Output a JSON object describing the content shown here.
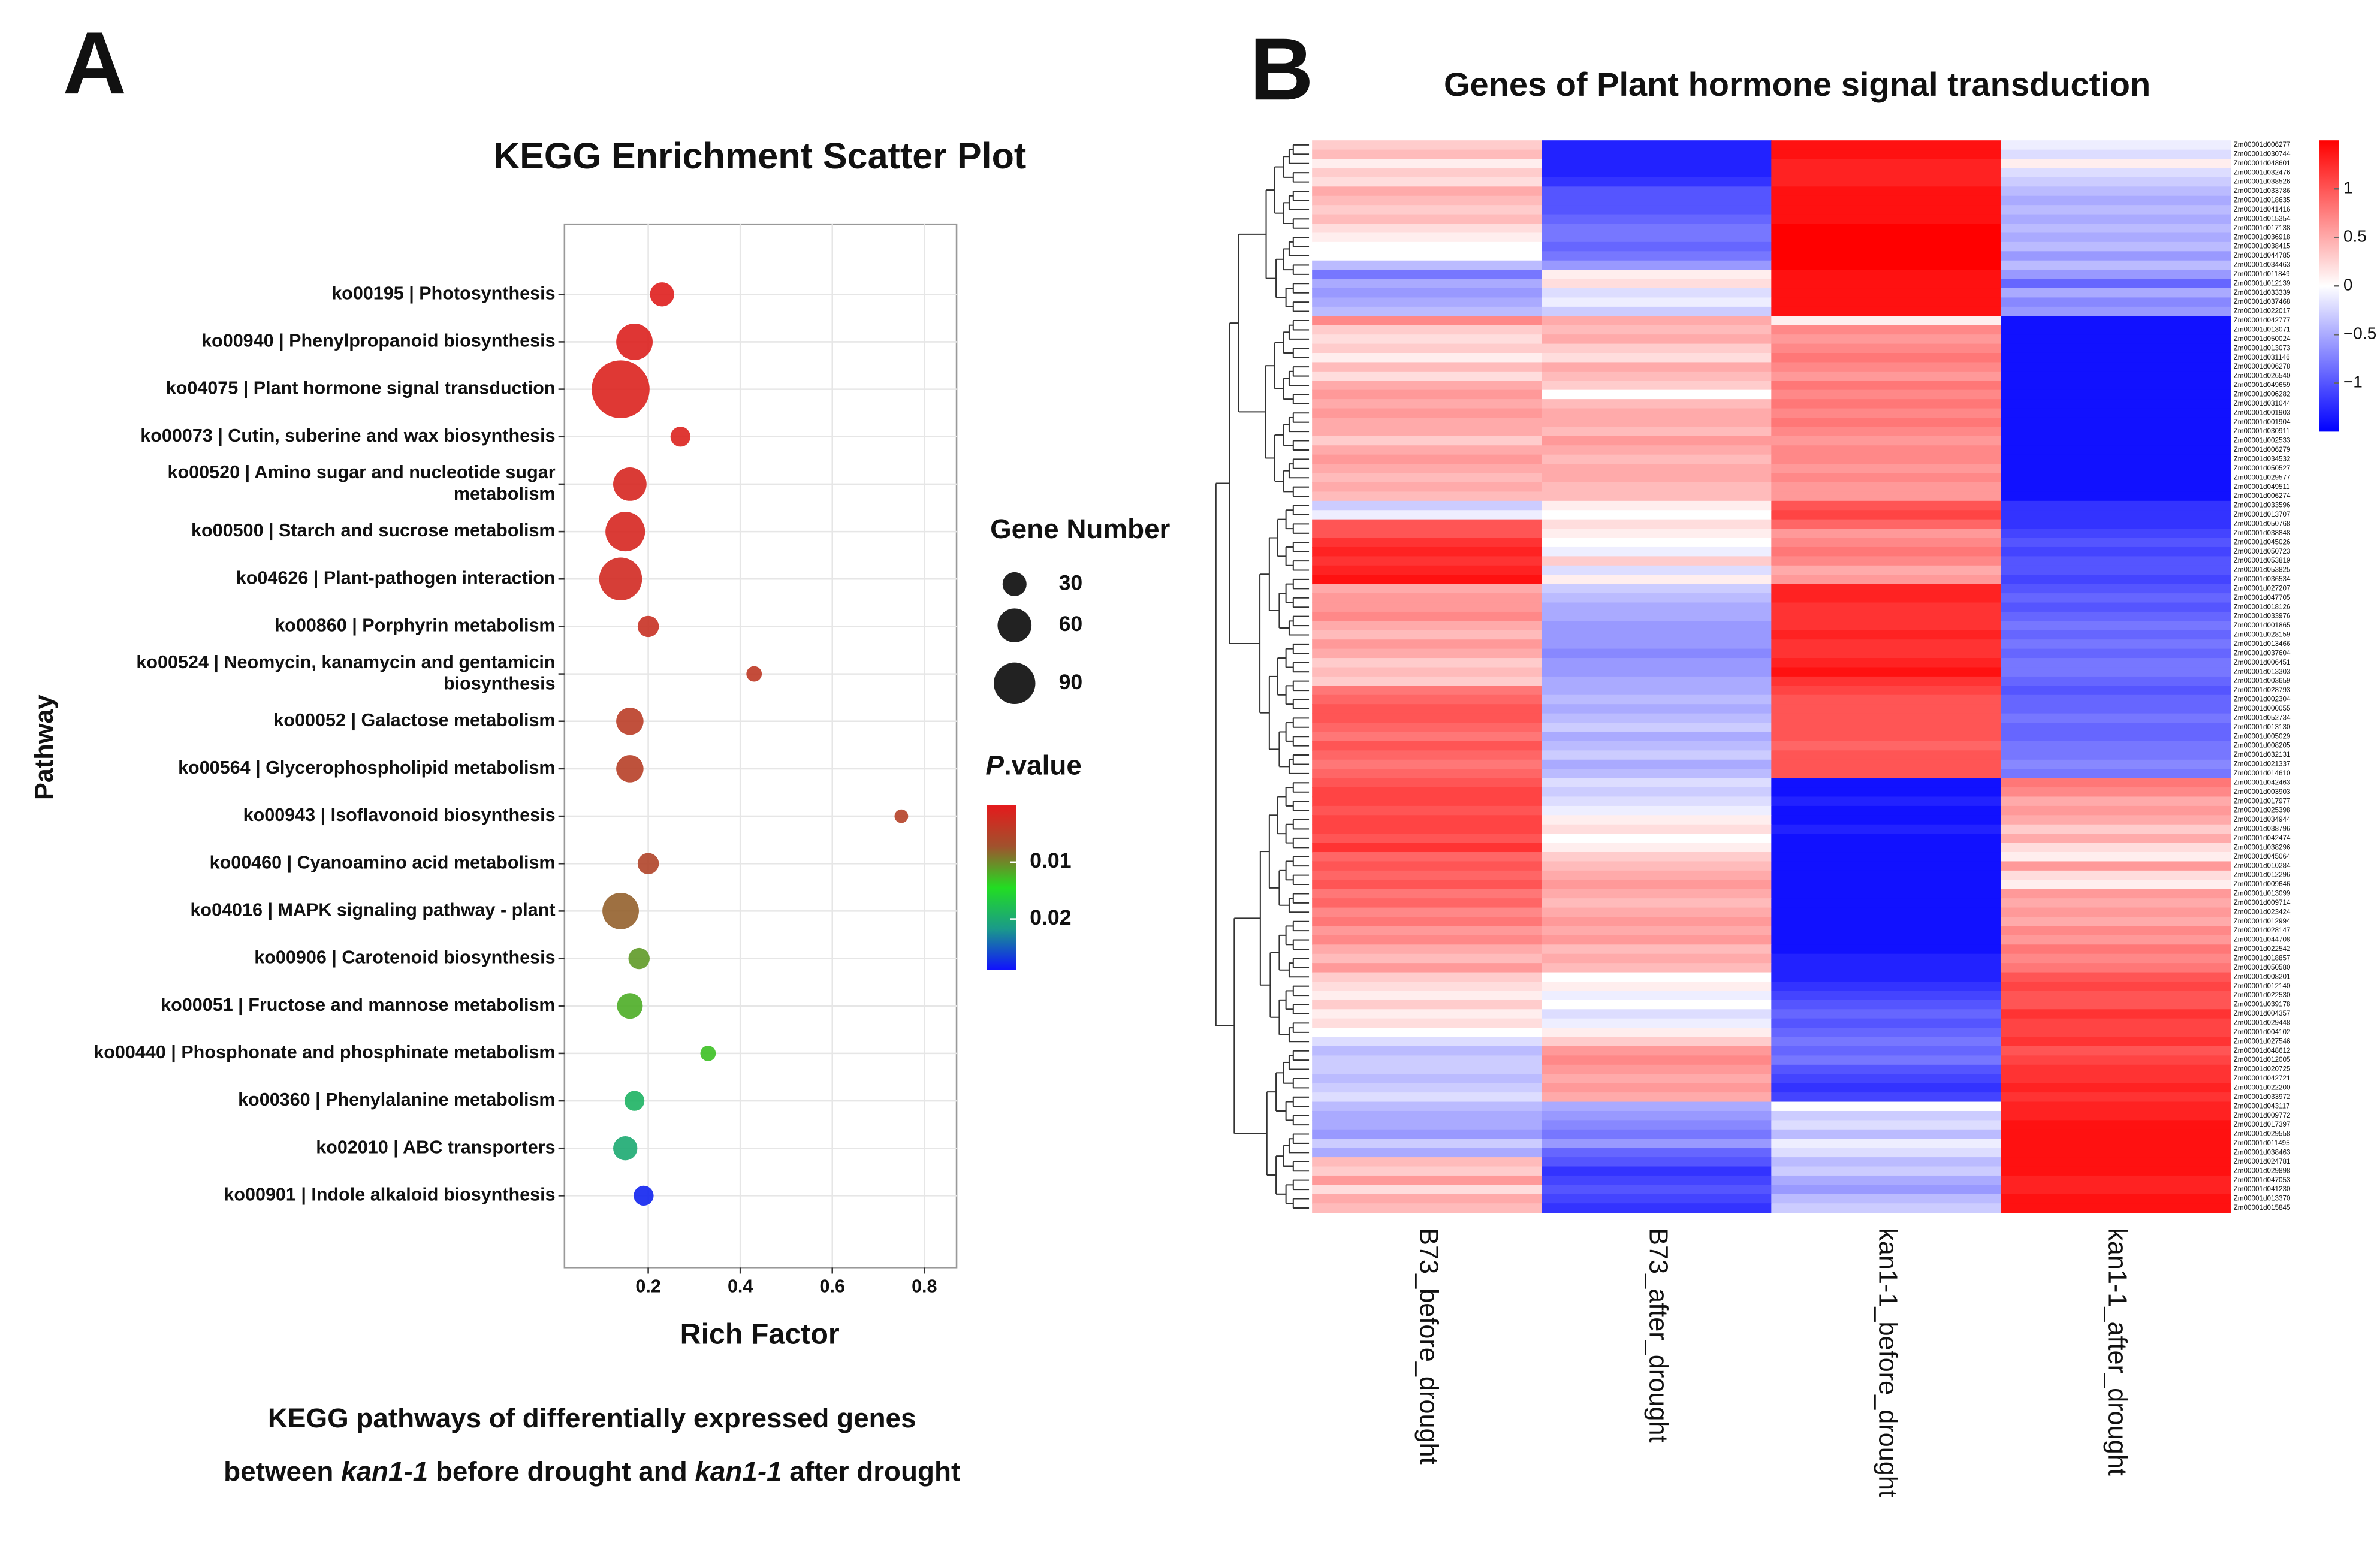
{
  "panel_labels": [
    "A",
    "B"
  ],
  "chart_data": [
    {
      "type": "scatter",
      "title": "KEGG Enrichment Scatter Plot",
      "x_label": "Rich Factor",
      "y_label": "Pathway",
      "categories": [
        "ko00195 | Photosynthesis",
        "ko00940 | Phenylpropanoid biosynthesis",
        "ko04075 | Plant hormone signal transduction",
        "ko00073 | Cutin, suberine and wax biosynthesis",
        "ko00520 | Amino sugar and nucleotide sugar metabolism",
        "ko00500 | Starch and sucrose metabolism",
        "ko04626 | Plant-pathogen interaction",
        "ko00860 | Porphyrin metabolism",
        "ko00524 | Neomycin, kanamycin and gentamicin biosynthesis",
        "ko00052 | Galactose metabolism",
        "ko00564 | Glycerophospholipid metabolism",
        "ko00943 | Isoflavonoid biosynthesis",
        "ko00460 | Cyanoamino acid metabolism",
        "ko04016 | MAPK signaling pathway - plant",
        "ko00906 | Carotenoid biosynthesis",
        "ko00051 | Fructose and mannose metabolism",
        "ko00440 | Phosphonate and phosphinate metabolism",
        "ko00360 | Phenylalanine metabolism",
        "ko02010 | ABC transporters",
        "ko00901 | Indole alkaloid biosynthesis"
      ],
      "x": [
        0.23,
        0.17,
        0.14,
        0.27,
        0.16,
        0.15,
        0.14,
        0.2,
        0.43,
        0.16,
        0.16,
        0.75,
        0.2,
        0.14,
        0.18,
        0.16,
        0.33,
        0.17,
        0.15,
        0.19
      ],
      "sizes": [
        22,
        50,
        126,
        15,
        42,
        59,
        69,
        17,
        9,
        28,
        28,
        7,
        17,
        50,
        17,
        25,
        9,
        15,
        22,
        15
      ],
      "pvalues": [
        0.0005,
        0.0008,
        0.001,
        0.001,
        0.0015,
        0.0015,
        0.002,
        0.003,
        0.004,
        0.0045,
        0.0048,
        0.005,
        0.0055,
        0.008,
        0.011,
        0.012,
        0.013,
        0.019,
        0.02,
        0.028
      ],
      "xlim": [
        0.018,
        0.87
      ],
      "xticks": [
        0.2,
        0.4,
        0.6,
        0.8
      ],
      "grid": true,
      "size_legend": {
        "title": "Gene Number",
        "values": [
          30,
          60,
          90
        ]
      },
      "color_legend": {
        "title": [
          "P",
          ".value"
        ],
        "lim": [
          0,
          0.029
        ],
        "ticks": [
          0.01,
          0.02
        ],
        "colors": [
          "#e41a1c",
          "#a0522d",
          "#22dd22",
          "#1a9a8a",
          "#1010ff"
        ]
      },
      "caption": [
        "KEGG pathways of differentially expressed genes",
        [
          "between ",
          "kan1-1",
          " before drought and ",
          "kan1-1",
          " after drought"
        ]
      ]
    },
    {
      "type": "heatmap",
      "title": "Genes of Plant hormone signal transduction",
      "columns": [
        "B73_before_drought",
        "B73_after_drought",
        "kan1-1_before_drought",
        "kan1-1_after_drought"
      ],
      "rows": [
        "Zm00001d006277",
        "Zm00001d030744",
        "Zm00001d048601",
        "Zm00001d032476",
        "Zm00001d038526",
        "Zm00001d033786",
        "Zm00001d018635",
        "Zm00001d041416",
        "Zm00001d015354",
        "Zm00001d017138",
        "Zm00001d036918",
        "Zm00001d038415",
        "Zm00001d044785",
        "Zm00001d034463",
        "Zm00001d011849",
        "Zm00001d012139",
        "Zm00001d033339",
        "Zm00001d037468",
        "Zm00001d022017",
        "Zm00001d042777",
        "Zm00001d013071",
        "Zm00001d050024",
        "Zm00001d013073",
        "Zm00001d031146",
        "Zm00001d006278",
        "Zm00001d026540",
        "Zm00001d049659",
        "Zm00001d006282",
        "Zm00001d031044",
        "Zm00001d001903",
        "Zm00001d001904",
        "Zm00001d030911",
        "Zm00001d002533",
        "Zm00001d006279",
        "Zm00001d034532",
        "Zm00001d050527",
        "Zm00001d029577",
        "Zm00001d049511",
        "Zm00001d006274",
        "Zm00001d033596",
        "Zm00001d013707",
        "Zm00001d050768",
        "Zm00001d038848",
        "Zm00001d045026",
        "Zm00001d050723",
        "Zm00001d053819",
        "Zm00001d053825",
        "Zm00001d036534",
        "Zm00001d027207",
        "Zm00001d047705",
        "Zm00001d018126",
        "Zm00001d033976",
        "Zm00001d001865",
        "Zm00001d028159",
        "Zm00001d013466",
        "Zm00001d037604",
        "Zm00001d006451",
        "Zm00001d013303",
        "Zm00001d003659",
        "Zm00001d028793",
        "Zm00001d002304",
        "Zm00001d000055",
        "Zm00001d052734",
        "Zm00001d013130",
        "Zm00001d005029",
        "Zm00001d008205",
        "Zm00001d032131",
        "Zm00001d021337",
        "Zm00001d014610",
        "Zm00001d042463",
        "Zm00001d003903",
        "Zm00001d017977",
        "Zm00001d025398",
        "Zm00001d034944",
        "Zm00001d038796",
        "Zm00001d042474",
        "Zm00001d038296",
        "Zm00001d045064",
        "Zm00001d010284",
        "Zm00001d012296",
        "Zm00001d009646",
        "Zm00001d013099",
        "Zm00001d009714",
        "Zm00001d023424",
        "Zm00001d012994",
        "Zm00001d028147",
        "Zm00001d044708",
        "Zm00001d022542",
        "Zm00001d018857",
        "Zm00001d050580",
        "Zm00001d008201",
        "Zm00001d012140",
        "Zm00001d022530",
        "Zm00001d039178",
        "Zm00001d004357",
        "Zm00001d029448",
        "Zm00001d004102",
        "Zm00001d027546",
        "Zm00001d048612",
        "Zm00001d012005",
        "Zm00001d020725",
        "Zm00001d042721",
        "Zm00001d022200",
        "Zm00001d033972",
        "Zm00001d043117",
        "Zm00001d009772",
        "Zm00001d017397",
        "Zm00001d029558",
        "Zm00001d011495",
        "Zm00001d038463",
        "Zm00001d024781",
        "Zm00001d029898",
        "Zm00001d047053",
        "Zm00001d041230",
        "Zm00001d013370",
        "Zm00001d015845"
      ],
      "values": [
        [
          0.3,
          -1.3,
          1.4,
          -0.1
        ],
        [
          0.4,
          -1.3,
          1.4,
          -0.2
        ],
        [
          0.1,
          -1.3,
          1.3,
          0.1
        ],
        [
          0.3,
          -1.3,
          1.3,
          -0.2
        ],
        [
          0.2,
          -1.2,
          1.3,
          -0.3
        ],
        [
          0.5,
          -1.0,
          1.4,
          -0.4
        ],
        [
          0.4,
          -1.0,
          1.4,
          -0.5
        ],
        [
          0.3,
          -1.0,
          1.4,
          -0.4
        ],
        [
          0.4,
          -0.9,
          1.4,
          -0.5
        ],
        [
          0.2,
          -0.8,
          1.5,
          -0.4
        ],
        [
          0.1,
          -0.8,
          1.5,
          -0.5
        ],
        [
          0.0,
          -0.9,
          1.5,
          -0.4
        ],
        [
          0.0,
          -0.8,
          1.5,
          -0.6
        ],
        [
          -0.4,
          -0.6,
          1.5,
          -0.4
        ],
        [
          -0.8,
          0.1,
          1.4,
          -0.6
        ],
        [
          -0.5,
          0.2,
          1.4,
          -0.9
        ],
        [
          -0.6,
          -0.2,
          1.4,
          -0.5
        ],
        [
          -0.5,
          -0.1,
          1.4,
          -0.7
        ],
        [
          -0.4,
          -0.3,
          1.4,
          -0.6
        ],
        [
          0.7,
          0.5,
          0.1,
          -1.4
        ],
        [
          0.3,
          0.4,
          0.7,
          -1.4
        ],
        [
          0.2,
          0.5,
          0.6,
          -1.4
        ],
        [
          0.3,
          0.3,
          0.7,
          -1.4
        ],
        [
          0.1,
          0.2,
          0.8,
          -1.4
        ],
        [
          0.4,
          0.5,
          0.7,
          -1.4
        ],
        [
          0.2,
          0.4,
          0.6,
          -1.4
        ],
        [
          0.5,
          0.3,
          0.8,
          -1.4
        ],
        [
          0.6,
          0.0,
          0.7,
          -1.4
        ],
        [
          0.5,
          0.4,
          0.8,
          -1.4
        ],
        [
          0.6,
          0.5,
          0.7,
          -1.4
        ],
        [
          0.5,
          0.5,
          0.8,
          -1.4
        ],
        [
          0.5,
          0.4,
          0.7,
          -1.4
        ],
        [
          0.3,
          0.6,
          0.6,
          -1.4
        ],
        [
          0.5,
          0.5,
          0.7,
          -1.4
        ],
        [
          0.6,
          0.4,
          0.7,
          -1.4
        ],
        [
          0.5,
          0.5,
          0.6,
          -1.4
        ],
        [
          0.4,
          0.5,
          0.7,
          -1.4
        ],
        [
          0.5,
          0.4,
          0.6,
          -1.4
        ],
        [
          0.4,
          0.4,
          0.6,
          -1.4
        ],
        [
          -0.3,
          0.1,
          1.0,
          -1.2
        ],
        [
          -0.1,
          0.0,
          1.1,
          -1.2
        ],
        [
          1.0,
          0.2,
          0.9,
          -1.2
        ],
        [
          1.0,
          0.1,
          0.6,
          -1.1
        ],
        [
          1.2,
          0.0,
          0.7,
          -1.0
        ],
        [
          1.3,
          -0.1,
          0.8,
          -1.1
        ],
        [
          1.2,
          0.3,
          0.7,
          -1.0
        ],
        [
          1.3,
          -0.2,
          0.5,
          -1.0
        ],
        [
          1.4,
          0.1,
          0.6,
          -1.1
        ],
        [
          0.5,
          -0.3,
          1.3,
          -1.0
        ],
        [
          0.6,
          -0.4,
          1.3,
          -0.9
        ],
        [
          0.6,
          -0.5,
          1.2,
          -1.0
        ],
        [
          0.7,
          -0.5,
          1.2,
          -0.9
        ],
        [
          0.5,
          -0.6,
          1.2,
          -0.8
        ],
        [
          0.4,
          -0.6,
          1.3,
          -0.9
        ],
        [
          0.6,
          -0.6,
          1.2,
          -0.8
        ],
        [
          0.5,
          -0.7,
          1.2,
          -0.9
        ],
        [
          0.3,
          -0.6,
          1.3,
          -0.8
        ],
        [
          0.4,
          -0.6,
          1.4,
          -0.8
        ],
        [
          0.3,
          -0.5,
          1.2,
          -0.9
        ],
        [
          0.8,
          -0.5,
          1.1,
          -1.0
        ],
        [
          0.9,
          -0.4,
          1.0,
          -0.9
        ],
        [
          1.0,
          -0.5,
          1.0,
          -0.9
        ],
        [
          1.0,
          -0.4,
          1.0,
          -0.8
        ],
        [
          0.9,
          -0.3,
          1.0,
          -0.9
        ],
        [
          0.8,
          -0.5,
          1.0,
          -0.9
        ],
        [
          1.0,
          -0.4,
          0.9,
          -0.8
        ],
        [
          0.9,
          -0.3,
          1.0,
          -0.8
        ],
        [
          0.8,
          -0.5,
          1.0,
          -0.7
        ],
        [
          0.9,
          -0.4,
          1.0,
          -0.8
        ],
        [
          1.0,
          -0.2,
          -1.4,
          0.8
        ],
        [
          1.1,
          -0.3,
          -1.4,
          0.7
        ],
        [
          1.1,
          -0.2,
          -1.3,
          0.5
        ],
        [
          1.0,
          -0.1,
          -1.4,
          0.6
        ],
        [
          1.1,
          0.1,
          -1.4,
          0.5
        ],
        [
          1.1,
          0.2,
          -1.3,
          0.3
        ],
        [
          1.0,
          0.0,
          -1.4,
          0.5
        ],
        [
          1.2,
          0.1,
          -1.4,
          0.2
        ],
        [
          0.9,
          0.3,
          -1.4,
          0.1
        ],
        [
          1.0,
          0.4,
          -1.4,
          0.6
        ],
        [
          0.9,
          0.5,
          -1.4,
          0.2
        ],
        [
          1.0,
          0.6,
          -1.4,
          0.1
        ],
        [
          0.8,
          0.5,
          -1.4,
          0.6
        ],
        [
          0.9,
          0.4,
          -1.4,
          0.5
        ],
        [
          0.7,
          0.5,
          -1.4,
          0.6
        ],
        [
          0.8,
          0.6,
          -1.4,
          0.5
        ],
        [
          0.6,
          0.5,
          -1.4,
          0.7
        ],
        [
          0.7,
          0.6,
          -1.4,
          0.6
        ],
        [
          0.5,
          0.4,
          -1.4,
          0.8
        ],
        [
          0.4,
          0.5,
          -1.3,
          0.7
        ],
        [
          0.6,
          0.4,
          -1.3,
          0.8
        ],
        [
          0.3,
          0.0,
          -1.3,
          1.0
        ],
        [
          0.2,
          0.1,
          -1.2,
          1.1
        ],
        [
          0.1,
          -0.1,
          -1.1,
          1.0
        ],
        [
          0.3,
          0.0,
          -1.0,
          1.0
        ],
        [
          0.1,
          -0.2,
          -0.9,
          1.2
        ],
        [
          0.2,
          -0.1,
          -1.0,
          1.1
        ],
        [
          0.0,
          0.1,
          -0.9,
          1.1
        ],
        [
          -0.2,
          0.3,
          -0.8,
          1.2
        ],
        [
          -0.4,
          0.6,
          -0.9,
          1.0
        ],
        [
          -0.3,
          0.7,
          -0.8,
          1.1
        ],
        [
          -0.3,
          0.6,
          -1.0,
          1.2
        ],
        [
          -0.4,
          0.5,
          -1.1,
          1.2
        ],
        [
          -0.3,
          0.6,
          -1.2,
          1.3
        ],
        [
          -0.2,
          0.5,
          -1.1,
          1.2
        ],
        [
          -0.4,
          -0.5,
          0.0,
          1.3
        ],
        [
          -0.5,
          -0.6,
          -0.3,
          1.3
        ],
        [
          -0.5,
          -0.7,
          -0.2,
          1.4
        ],
        [
          -0.6,
          -0.8,
          -0.4,
          1.4
        ],
        [
          -0.3,
          -0.6,
          -0.1,
          1.4
        ],
        [
          -0.5,
          -0.9,
          -0.2,
          1.4
        ],
        [
          0.4,
          -1.0,
          -0.4,
          1.4
        ],
        [
          0.3,
          -1.2,
          -0.3,
          1.4
        ],
        [
          0.6,
          -1.1,
          -0.5,
          1.3
        ],
        [
          0.2,
          -1.0,
          -0.6,
          1.3
        ],
        [
          0.5,
          -1.1,
          -0.4,
          1.4
        ],
        [
          0.4,
          -1.2,
          -0.3,
          1.4
        ]
      ],
      "zlim": [
        -1.5,
        1.5
      ],
      "zticks": [
        1,
        0.5,
        0,
        {
          "value": -0.5,
          "label": "−0.5"
        },
        {
          "value": -1,
          "label": "−1"
        }
      ],
      "colors": [
        "#0000ff",
        "#ffffff",
        "#ff0000"
      ]
    }
  ]
}
